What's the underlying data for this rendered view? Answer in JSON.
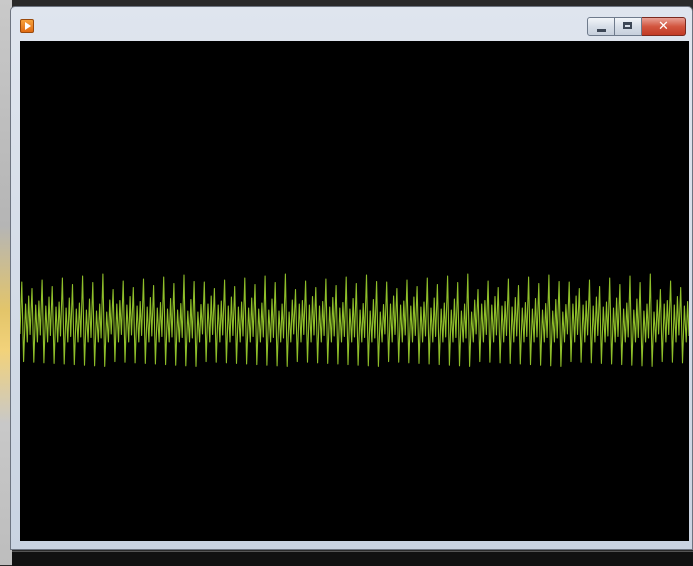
{
  "window": {
    "app_icon": "play-icon",
    "buttons": [
      {
        "name": "minimize",
        "icon": "minimize-icon"
      },
      {
        "name": "maximize",
        "icon": "maximize-icon"
      },
      {
        "name": "close",
        "icon": "close-icon",
        "glyph": "✕"
      }
    ],
    "background_color": "#000000"
  },
  "waveform": {
    "color": "#8fbf2a",
    "peak_count": 66,
    "style": "oscillating signal trace"
  }
}
